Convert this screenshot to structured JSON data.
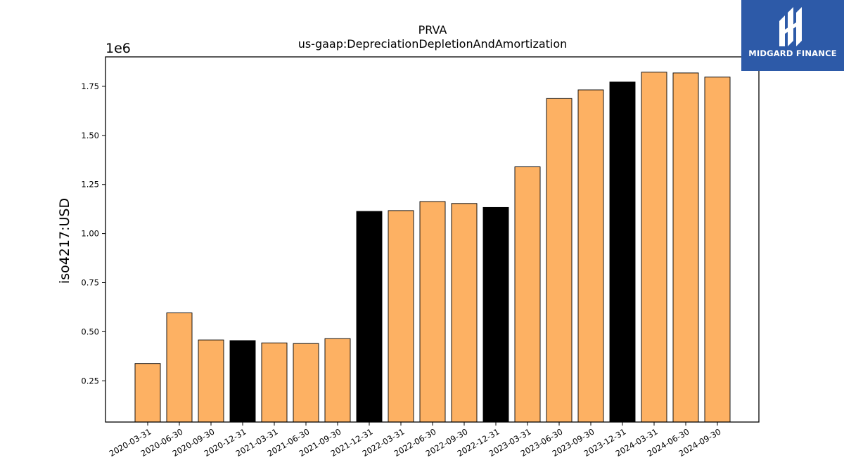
{
  "chart_data": {
    "type": "bar",
    "title": "PRVA",
    "subtitle": "us-gaap:DepreciationDepletionAndAmortization",
    "ylabel": "iso4217:USD",
    "xlabel": "",
    "offset_label": "1e6",
    "ylim": [
      0.04,
      1.9
    ],
    "yticks": [
      0.25,
      0.5,
      0.75,
      1.0,
      1.25,
      1.5,
      1.75
    ],
    "ytick_labels": [
      "0.25",
      "0.50",
      "0.75",
      "1.00",
      "1.25",
      "1.50",
      "1.75"
    ],
    "categories": [
      "2020-03-31",
      "2020-06-30",
      "2020-09-30",
      "2020-12-31",
      "2021-03-31",
      "2021-06-30",
      "2021-09-30",
      "2021-12-31",
      "2022-03-31",
      "2022-06-30",
      "2022-09-30",
      "2022-12-31",
      "2023-03-31",
      "2023-06-30",
      "2023-09-30",
      "2023-12-31",
      "2024-03-31",
      "2024-06-30",
      "2024-09-30"
    ],
    "values": [
      0.338,
      0.596,
      0.458,
      0.455,
      0.443,
      0.44,
      0.465,
      1.113,
      1.117,
      1.163,
      1.153,
      1.133,
      1.34,
      1.688,
      1.732,
      1.772,
      1.822,
      1.818,
      1.797
    ],
    "highlight": [
      false,
      false,
      false,
      true,
      false,
      false,
      false,
      true,
      false,
      false,
      false,
      true,
      false,
      false,
      false,
      true,
      false,
      false,
      false
    ],
    "colors": {
      "bar": "#fdb163",
      "highlight": "#000000",
      "edge": "#000000"
    },
    "grid": false,
    "legend": "none"
  },
  "logo": {
    "text": "MIDGARD FINANCE",
    "color": "#2d5aa8"
  }
}
